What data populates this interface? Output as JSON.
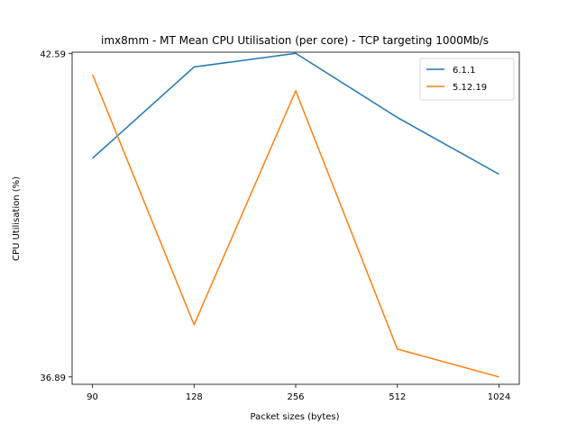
{
  "chart_data": {
    "type": "line",
    "title": "imx8mm - MT Mean CPU Utilisation (per core) - TCP targeting 1000Mb/s",
    "xlabel": "Packet sizes (bytes)",
    "ylabel": "CPU Utilisation (%)",
    "categories": [
      "90",
      "128",
      "256",
      "512",
      "1024"
    ],
    "yticks": [
      "36.89",
      "42.59"
    ],
    "ylim": [
      36.76,
      42.61
    ],
    "legend_position": "top-right",
    "grid": false,
    "series": [
      {
        "name": "6.1.1",
        "color": "#1f77b4",
        "values": [
          40.74,
          42.35,
          42.59,
          41.46,
          40.46
        ]
      },
      {
        "name": "5.12.19",
        "color": "#ff7f0e",
        "values": [
          42.22,
          37.81,
          41.93,
          37.38,
          36.89
        ]
      }
    ]
  }
}
